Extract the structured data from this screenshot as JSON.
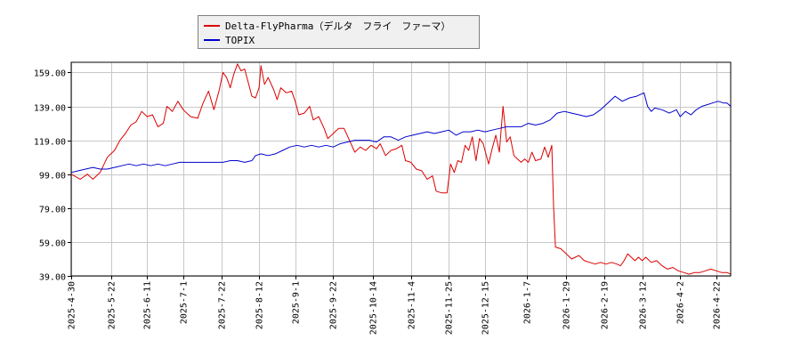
{
  "chart_data": {
    "type": "line",
    "title": "",
    "xlabel": "",
    "ylabel": "",
    "ylim": [
      39,
      165
    ],
    "yticks": [
      39,
      59,
      79,
      99,
      119,
      139,
      159
    ],
    "ytick_labels": [
      "39.00",
      "59.00",
      "79.00",
      "99.00",
      "119.00",
      "139.00",
      "159.00"
    ],
    "xlim": [
      "2025-04-30",
      "2026-04-30"
    ],
    "xtick_labels": [
      "2025-4-30",
      "2025-5-22",
      "2025-6-11",
      "2025-7-1",
      "2025-7-22",
      "2025-8-12",
      "2025-9-1",
      "2025-9-22",
      "2025-10-14",
      "2025-11-4",
      "2025-11-25",
      "2025-12-15",
      "2026-1-7",
      "2026-1-29",
      "2026-2-19",
      "2026-3-12",
      "2026-4-2",
      "2026-4-22"
    ],
    "xtick_dates": [
      "2025-04-30",
      "2025-05-22",
      "2025-06-11",
      "2025-07-01",
      "2025-07-22",
      "2025-08-12",
      "2025-09-01",
      "2025-09-22",
      "2025-10-14",
      "2025-11-04",
      "2025-11-25",
      "2025-12-15",
      "2026-01-07",
      "2026-01-29",
      "2026-02-19",
      "2026-03-12",
      "2026-04-02",
      "2026-04-22"
    ],
    "grid": true,
    "legend_position": "top-left",
    "series": [
      {
        "name": "Delta-FlyPharma（デルタ　フライ　ファーマ）",
        "color": "#dd0000",
        "points": [
          [
            "2025-04-30",
            99
          ],
          [
            "2025-05-05",
            96
          ],
          [
            "2025-05-09",
            99
          ],
          [
            "2025-05-12",
            96
          ],
          [
            "2025-05-16",
            100
          ],
          [
            "2025-05-20",
            109
          ],
          [
            "2025-05-24",
            113
          ],
          [
            "2025-05-27",
            119
          ],
          [
            "2025-05-30",
            123
          ],
          [
            "2025-06-02",
            128
          ],
          [
            "2025-06-05",
            130
          ],
          [
            "2025-06-08",
            136
          ],
          [
            "2025-06-11",
            133
          ],
          [
            "2025-06-14",
            134
          ],
          [
            "2025-06-17",
            127
          ],
          [
            "2025-06-20",
            129
          ],
          [
            "2025-06-22",
            139
          ],
          [
            "2025-06-25",
            136
          ],
          [
            "2025-06-28",
            142
          ],
          [
            "2025-07-01",
            137
          ],
          [
            "2025-07-05",
            133
          ],
          [
            "2025-07-09",
            132
          ],
          [
            "2025-07-12",
            141
          ],
          [
            "2025-07-15",
            148
          ],
          [
            "2025-07-18",
            137
          ],
          [
            "2025-07-21",
            149
          ],
          [
            "2025-07-23",
            159
          ],
          [
            "2025-07-25",
            156
          ],
          [
            "2025-07-27",
            150
          ],
          [
            "2025-07-29",
            158
          ],
          [
            "2025-07-31",
            164
          ],
          [
            "2025-08-02",
            160
          ],
          [
            "2025-08-04",
            161
          ],
          [
            "2025-08-06",
            153
          ],
          [
            "2025-08-08",
            145
          ],
          [
            "2025-08-10",
            144
          ],
          [
            "2025-08-12",
            150
          ],
          [
            "2025-08-13",
            163
          ],
          [
            "2025-08-15",
            152
          ],
          [
            "2025-08-17",
            156
          ],
          [
            "2025-08-20",
            149
          ],
          [
            "2025-08-22",
            143
          ],
          [
            "2025-08-24",
            150
          ],
          [
            "2025-08-27",
            147
          ],
          [
            "2025-08-30",
            148
          ],
          [
            "2025-09-01",
            142
          ],
          [
            "2025-09-03",
            134
          ],
          [
            "2025-09-06",
            135
          ],
          [
            "2025-09-09",
            139
          ],
          [
            "2025-09-11",
            131
          ],
          [
            "2025-09-14",
            133
          ],
          [
            "2025-09-17",
            126
          ],
          [
            "2025-09-19",
            120
          ],
          [
            "2025-09-22",
            123
          ],
          [
            "2025-09-25",
            126
          ],
          [
            "2025-09-28",
            126
          ],
          [
            "2025-10-01",
            119
          ],
          [
            "2025-10-04",
            112
          ],
          [
            "2025-10-07",
            115
          ],
          [
            "2025-10-10",
            113
          ],
          [
            "2025-10-13",
            116
          ],
          [
            "2025-10-16",
            114
          ],
          [
            "2025-10-18",
            117
          ],
          [
            "2025-10-21",
            110
          ],
          [
            "2025-10-24",
            113
          ],
          [
            "2025-10-27",
            114
          ],
          [
            "2025-10-30",
            116
          ],
          [
            "2025-11-01",
            107
          ],
          [
            "2025-11-04",
            106
          ],
          [
            "2025-11-07",
            102
          ],
          [
            "2025-11-10",
            101
          ],
          [
            "2025-11-13",
            96
          ],
          [
            "2025-11-16",
            98
          ],
          [
            "2025-11-18",
            89
          ],
          [
            "2025-11-21",
            88
          ],
          [
            "2025-11-24",
            88
          ],
          [
            "2025-11-26",
            105
          ],
          [
            "2025-11-28",
            100
          ],
          [
            "2025-11-30",
            107
          ],
          [
            "2025-12-02",
            106
          ],
          [
            "2025-12-04",
            116
          ],
          [
            "2025-12-06",
            113
          ],
          [
            "2025-12-08",
            121
          ],
          [
            "2025-12-10",
            107
          ],
          [
            "2025-12-12",
            120
          ],
          [
            "2025-12-14",
            117
          ],
          [
            "2025-12-17",
            105
          ],
          [
            "2025-12-19",
            114
          ],
          [
            "2025-12-21",
            122
          ],
          [
            "2025-12-23",
            112
          ],
          [
            "2025-12-25",
            139
          ],
          [
            "2025-12-27",
            118
          ],
          [
            "2025-12-29",
            121
          ],
          [
            "2025-12-31",
            110
          ],
          [
            "2026-01-02",
            108
          ],
          [
            "2026-01-04",
            106
          ],
          [
            "2026-01-06",
            108
          ],
          [
            "2026-01-08",
            106
          ],
          [
            "2026-01-10",
            112
          ],
          [
            "2026-01-12",
            107
          ],
          [
            "2026-01-15",
            108
          ],
          [
            "2026-01-17",
            115
          ],
          [
            "2026-01-19",
            109
          ],
          [
            "2026-01-21",
            116
          ],
          [
            "2026-01-22",
            80
          ],
          [
            "2026-01-23",
            56
          ],
          [
            "2026-01-26",
            55
          ],
          [
            "2026-01-29",
            52
          ],
          [
            "2026-02-01",
            49
          ],
          [
            "2026-02-03",
            50
          ],
          [
            "2026-02-05",
            51
          ],
          [
            "2026-02-08",
            48
          ],
          [
            "2026-02-11",
            47
          ],
          [
            "2026-02-14",
            46
          ],
          [
            "2026-02-17",
            47
          ],
          [
            "2026-02-20",
            46
          ],
          [
            "2026-02-23",
            47
          ],
          [
            "2026-02-26",
            46
          ],
          [
            "2026-02-28",
            45
          ],
          [
            "2026-03-02",
            48
          ],
          [
            "2026-03-04",
            52
          ],
          [
            "2026-03-06",
            50
          ],
          [
            "2026-03-08",
            48
          ],
          [
            "2026-03-10",
            50
          ],
          [
            "2026-03-12",
            48
          ],
          [
            "2026-03-14",
            50
          ],
          [
            "2026-03-17",
            47
          ],
          [
            "2026-03-20",
            48
          ],
          [
            "2026-03-23",
            45
          ],
          [
            "2026-03-26",
            43
          ],
          [
            "2026-03-29",
            44
          ],
          [
            "2026-04-01",
            42
          ],
          [
            "2026-04-04",
            41
          ],
          [
            "2026-04-07",
            40
          ],
          [
            "2026-04-10",
            41
          ],
          [
            "2026-04-13",
            41
          ],
          [
            "2026-04-16",
            42
          ],
          [
            "2026-04-19",
            43
          ],
          [
            "2026-04-22",
            42
          ],
          [
            "2026-04-25",
            41
          ],
          [
            "2026-04-28",
            41
          ],
          [
            "2026-04-30",
            40
          ]
        ]
      },
      {
        "name": "TOPIX",
        "color": "#0000cc",
        "points": [
          [
            "2025-04-30",
            100
          ],
          [
            "2025-05-04",
            101
          ],
          [
            "2025-05-08",
            102
          ],
          [
            "2025-05-12",
            103
          ],
          [
            "2025-05-16",
            102
          ],
          [
            "2025-05-20",
            102
          ],
          [
            "2025-05-24",
            103
          ],
          [
            "2025-05-28",
            104
          ],
          [
            "2025-06-01",
            105
          ],
          [
            "2025-06-05",
            104
          ],
          [
            "2025-06-09",
            105
          ],
          [
            "2025-06-13",
            104
          ],
          [
            "2025-06-17",
            105
          ],
          [
            "2025-06-21",
            104
          ],
          [
            "2025-06-25",
            105
          ],
          [
            "2025-06-29",
            106
          ],
          [
            "2025-07-03",
            106
          ],
          [
            "2025-07-07",
            106
          ],
          [
            "2025-07-11",
            106
          ],
          [
            "2025-07-15",
            106
          ],
          [
            "2025-07-19",
            106
          ],
          [
            "2025-07-23",
            106
          ],
          [
            "2025-07-27",
            107
          ],
          [
            "2025-07-31",
            107
          ],
          [
            "2025-08-04",
            106
          ],
          [
            "2025-08-08",
            107
          ],
          [
            "2025-08-10",
            110
          ],
          [
            "2025-08-13",
            111
          ],
          [
            "2025-08-17",
            110
          ],
          [
            "2025-08-21",
            111
          ],
          [
            "2025-08-25",
            113
          ],
          [
            "2025-08-29",
            115
          ],
          [
            "2025-09-02",
            116
          ],
          [
            "2025-09-06",
            115
          ],
          [
            "2025-09-10",
            116
          ],
          [
            "2025-09-14",
            115
          ],
          [
            "2025-09-18",
            116
          ],
          [
            "2025-09-22",
            115
          ],
          [
            "2025-09-26",
            117
          ],
          [
            "2025-09-30",
            118
          ],
          [
            "2025-10-04",
            119
          ],
          [
            "2025-10-08",
            119
          ],
          [
            "2025-10-12",
            119
          ],
          [
            "2025-10-16",
            118
          ],
          [
            "2025-10-20",
            121
          ],
          [
            "2025-10-24",
            121
          ],
          [
            "2025-10-28",
            119
          ],
          [
            "2025-11-01",
            121
          ],
          [
            "2025-11-05",
            122
          ],
          [
            "2025-11-09",
            123
          ],
          [
            "2025-11-13",
            124
          ],
          [
            "2025-11-17",
            123
          ],
          [
            "2025-11-21",
            124
          ],
          [
            "2025-11-25",
            125
          ],
          [
            "2025-11-29",
            122
          ],
          [
            "2025-12-03",
            124
          ],
          [
            "2025-12-07",
            124
          ],
          [
            "2025-12-11",
            125
          ],
          [
            "2025-12-15",
            124
          ],
          [
            "2025-12-19",
            125
          ],
          [
            "2025-12-23",
            126
          ],
          [
            "2025-12-27",
            127
          ],
          [
            "2025-12-31",
            127
          ],
          [
            "2026-01-04",
            127
          ],
          [
            "2026-01-08",
            129
          ],
          [
            "2026-01-12",
            128
          ],
          [
            "2026-01-16",
            129
          ],
          [
            "2026-01-20",
            131
          ],
          [
            "2026-01-24",
            135
          ],
          [
            "2026-01-28",
            136
          ],
          [
            "2026-02-01",
            135
          ],
          [
            "2026-02-05",
            134
          ],
          [
            "2026-02-09",
            133
          ],
          [
            "2026-02-13",
            134
          ],
          [
            "2026-02-17",
            137
          ],
          [
            "2026-02-21",
            141
          ],
          [
            "2026-02-25",
            145
          ],
          [
            "2026-03-01",
            142
          ],
          [
            "2026-03-05",
            144
          ],
          [
            "2026-03-09",
            145
          ],
          [
            "2026-03-13",
            147
          ],
          [
            "2026-03-15",
            139
          ],
          [
            "2026-03-17",
            136
          ],
          [
            "2026-03-19",
            138
          ],
          [
            "2026-03-23",
            137
          ],
          [
            "2026-03-27",
            135
          ],
          [
            "2026-03-31",
            137
          ],
          [
            "2026-04-02",
            133
          ],
          [
            "2026-04-05",
            136
          ],
          [
            "2026-04-08",
            134
          ],
          [
            "2026-04-11",
            137
          ],
          [
            "2026-04-14",
            139
          ],
          [
            "2026-04-17",
            140
          ],
          [
            "2026-04-20",
            141
          ],
          [
            "2026-04-23",
            142
          ],
          [
            "2026-04-26",
            141
          ],
          [
            "2026-04-28",
            141
          ],
          [
            "2026-04-30",
            139
          ]
        ]
      }
    ]
  }
}
